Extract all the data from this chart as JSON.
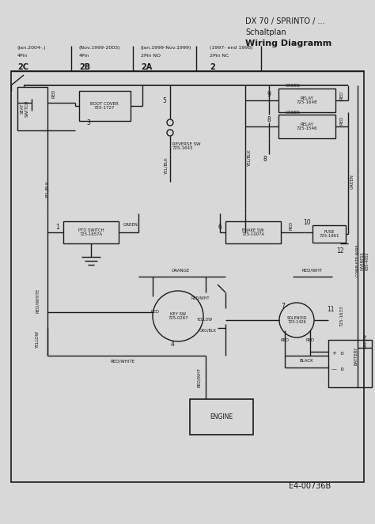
{
  "bg_color": "#d8d8d8",
  "line_color": "#1a1a1a",
  "title_lines": [
    "DX 70 / SPRINTO / ...",
    "Schaltplan",
    "Wiring Diagramm"
  ],
  "footer": "E4-00736B",
  "fig_w": 4.74,
  "fig_h": 6.63,
  "dpi": 100
}
